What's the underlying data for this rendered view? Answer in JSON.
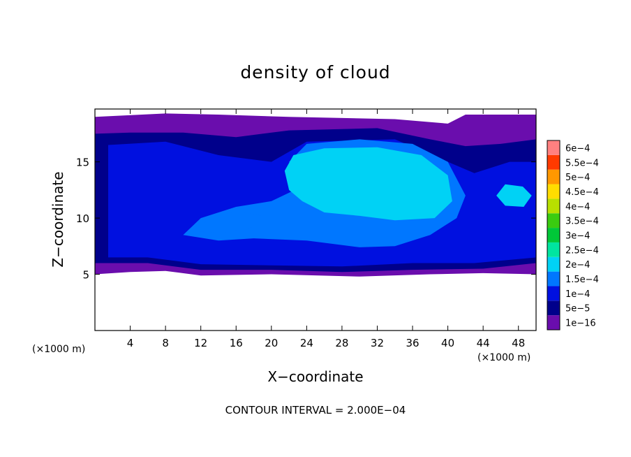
{
  "chart_data": {
    "type": "heatmap",
    "title": "density of cloud",
    "xlabel": "X−coordinate",
    "ylabel": "Z−coordinate",
    "x_unit": "(×1000 m)",
    "y_unit": "(×1000 m)",
    "xlim": [
      0,
      50
    ],
    "ylim": [
      0,
      19.7
    ],
    "x_ticks": [
      4,
      8,
      12,
      16,
      20,
      24,
      28,
      32,
      36,
      40,
      44,
      48
    ],
    "y_ticks": [
      5,
      10,
      15
    ],
    "footer": "CONTOUR INTERVAL = 2.000E−04",
    "colorbar": {
      "labels": [
        "1e−16",
        "5e−5",
        "1e−4",
        "1.5e−4",
        "2e−4",
        "2.5e−4",
        "3e−4",
        "3.5e−4",
        "4e−4",
        "4.5e−4",
        "5e−4",
        "5.5e−4",
        "6e−4"
      ],
      "colors": [
        "#6a0dad",
        "#00008b",
        "#0010e0",
        "#0077ff",
        "#00d2f5",
        "#00e5a0",
        "#00c838",
        "#3acc10",
        "#b8e000",
        "#ffdd00",
        "#ff9800",
        "#ff3a00",
        "#ff8080"
      ],
      "min": 0,
      "max": 0.0006
    },
    "regions": [
      {
        "value": 3e-05,
        "polygon": [
          [
            0,
            5
          ],
          [
            0,
            19
          ],
          [
            8,
            19.3
          ],
          [
            14,
            19.2
          ],
          [
            22,
            19
          ],
          [
            34,
            18.8
          ],
          [
            40,
            18.4
          ],
          [
            42,
            19.2
          ],
          [
            50,
            19.2
          ],
          [
            50,
            5
          ],
          [
            44,
            5.1
          ],
          [
            38,
            5
          ],
          [
            30,
            4.8
          ],
          [
            20,
            5
          ],
          [
            12,
            4.9
          ],
          [
            8,
            5.3
          ],
          [
            4,
            5.2
          ]
        ]
      },
      {
        "value": 7e-05,
        "polygon": [
          [
            0,
            6
          ],
          [
            0,
            17.5
          ],
          [
            4,
            17.6
          ],
          [
            10,
            17.6
          ],
          [
            16,
            17.2
          ],
          [
            22,
            17.8
          ],
          [
            32,
            18
          ],
          [
            38,
            17
          ],
          [
            42,
            16.4
          ],
          [
            46,
            16.6
          ],
          [
            50,
            17
          ],
          [
            50,
            6
          ],
          [
            44,
            5.5
          ],
          [
            36,
            5.4
          ],
          [
            28,
            5.2
          ],
          [
            20,
            5.4
          ],
          [
            12,
            5.4
          ],
          [
            6,
            6
          ]
        ]
      },
      {
        "value": 0.00012,
        "polygon": [
          [
            1.5,
            6.5
          ],
          [
            1.5,
            16.5
          ],
          [
            8,
            16.8
          ],
          [
            14,
            15.6
          ],
          [
            20,
            15
          ],
          [
            24,
            16.8
          ],
          [
            34,
            17
          ],
          [
            40,
            15
          ],
          [
            43,
            14
          ],
          [
            47,
            15
          ],
          [
            50,
            15
          ],
          [
            50,
            6.5
          ],
          [
            43,
            6
          ],
          [
            36,
            6
          ],
          [
            28,
            5.7
          ],
          [
            20,
            5.8
          ],
          [
            12,
            5.9
          ],
          [
            6,
            6.5
          ]
        ]
      },
      {
        "value": 0.00016,
        "polygon": [
          [
            10,
            8.5
          ],
          [
            12,
            10
          ],
          [
            16,
            11
          ],
          [
            20,
            11.5
          ],
          [
            24,
            13
          ],
          [
            22,
            15
          ],
          [
            24,
            16.6
          ],
          [
            30,
            17
          ],
          [
            36,
            16.6
          ],
          [
            40,
            15
          ],
          [
            42,
            12
          ],
          [
            41,
            10
          ],
          [
            38,
            8.5
          ],
          [
            34,
            7.5
          ],
          [
            30,
            7.4
          ],
          [
            24,
            8
          ],
          [
            18,
            8.2
          ],
          [
            14,
            8
          ]
        ]
      },
      {
        "value": 0.0002,
        "polygon": [
          [
            22,
            12.5
          ],
          [
            21.5,
            14.2
          ],
          [
            22.5,
            15.6
          ],
          [
            26,
            16.2
          ],
          [
            32,
            16.3
          ],
          [
            37,
            15.6
          ],
          [
            40,
            13.8
          ],
          [
            40.5,
            11.5
          ],
          [
            38.5,
            10
          ],
          [
            34,
            9.8
          ],
          [
            30,
            10.2
          ],
          [
            26,
            10.5
          ],
          [
            23.5,
            11.5
          ]
        ]
      },
      {
        "value": 0.00021,
        "polygon": [
          [
            45.5,
            12
          ],
          [
            46.5,
            13
          ],
          [
            48.5,
            12.8
          ],
          [
            49.5,
            12
          ],
          [
            48.6,
            11
          ],
          [
            46.5,
            11.1
          ]
        ]
      },
      {
        "value": 0.00018,
        "polygon": [
          [
            11,
            8.8
          ],
          [
            13,
            10
          ],
          [
            16,
            10.6
          ],
          [
            19,
            10.2
          ],
          [
            18,
            9.2
          ],
          [
            14.5,
            8.7
          ]
        ]
      }
    ]
  }
}
